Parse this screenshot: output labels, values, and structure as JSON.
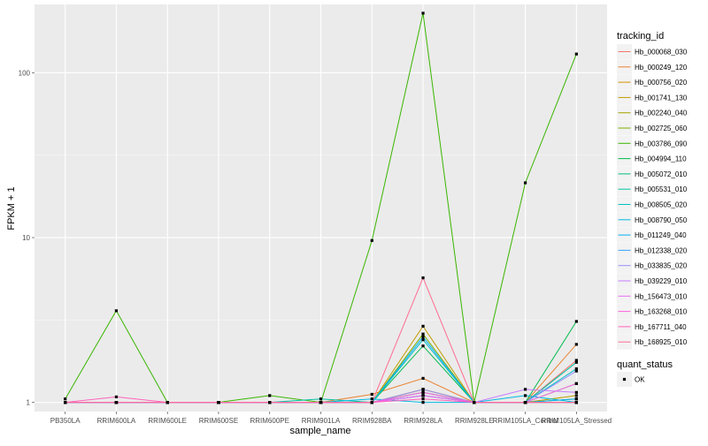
{
  "chart_data": {
    "type": "line",
    "xlabel": "sample_name",
    "ylabel": "FPKM + 1",
    "y_scale": "log10",
    "ylim": [
      0.88,
      260
    ],
    "y_ticks": [
      1,
      10,
      100
    ],
    "y_tick_labels": [
      "1",
      "10",
      "100"
    ],
    "grid": true,
    "legend_placement": "right",
    "categories": [
      "PB350LA",
      "RRIM600LA",
      "RRIM600LE",
      "RRIM600SE",
      "RRIM600PE",
      "RRIM901LA",
      "RRIM928BA",
      "RRIM928LA",
      "RRIM928LE",
      "RRIM105LA_Control",
      "RRIM105LA_Stressed"
    ],
    "legend_colour_title": "tracking_id",
    "legend_shape_title": "quant_status",
    "shape_entries": [
      "OK"
    ],
    "series": [
      {
        "name": "Hb_000068_030",
        "color": "#F8766D",
        "values": [
          1.0,
          1.0,
          1.0,
          1.0,
          1.0,
          1.0,
          1.0,
          1.15,
          1.0,
          1.0,
          1.8
        ]
      },
      {
        "name": "Hb_000249_120",
        "color": "#EA8331",
        "values": [
          1.0,
          1.0,
          1.0,
          1.0,
          1.0,
          1.0,
          1.12,
          1.4,
          1.0,
          1.0,
          2.25
        ]
      },
      {
        "name": "Hb_000756_020",
        "color": "#D89000",
        "values": [
          1.0,
          1.0,
          1.0,
          1.0,
          1.0,
          1.0,
          1.0,
          1.2,
          1.0,
          1.0,
          1.3
        ]
      },
      {
        "name": "Hb_001741_130",
        "color": "#C09B00",
        "values": [
          1.0,
          1.0,
          1.0,
          1.0,
          1.0,
          1.0,
          1.0,
          2.9,
          1.0,
          1.0,
          1.1
        ]
      },
      {
        "name": "Hb_002240_040",
        "color": "#A3A500",
        "values": [
          1.0,
          1.0,
          1.0,
          1.0,
          1.0,
          1.0,
          1.0,
          1.2,
          1.0,
          1.0,
          1.0
        ]
      },
      {
        "name": "Hb_002725_060",
        "color": "#7CAE00",
        "values": [
          1.0,
          1.0,
          1.0,
          1.0,
          1.0,
          1.0,
          1.0,
          2.6,
          1.0,
          1.0,
          1.05
        ]
      },
      {
        "name": "Hb_003786_090",
        "color": "#39B600",
        "values": [
          1.05,
          3.6,
          1.0,
          1.0,
          1.1,
          1.0,
          9.6,
          230.0,
          1.0,
          21.5,
          130.0
        ]
      },
      {
        "name": "Hb_004994_110",
        "color": "#00BB4E",
        "values": [
          1.0,
          1.0,
          1.0,
          1.0,
          1.0,
          1.0,
          1.0,
          2.2,
          1.0,
          1.0,
          3.1
        ]
      },
      {
        "name": "Hb_005072_010",
        "color": "#00BF7D",
        "values": [
          1.0,
          1.0,
          1.0,
          1.0,
          1.0,
          1.0,
          1.0,
          1.1,
          1.0,
          1.0,
          1.0
        ]
      },
      {
        "name": "Hb_005531_010",
        "color": "#00C1A3",
        "values": [
          1.0,
          1.0,
          1.0,
          1.0,
          1.0,
          1.05,
          1.0,
          1.15,
          1.0,
          1.0,
          1.75
        ]
      },
      {
        "name": "Hb_008505_020",
        "color": "#00BFC4",
        "values": [
          1.0,
          1.0,
          1.0,
          1.0,
          1.0,
          1.0,
          1.0,
          2.4,
          1.0,
          1.0,
          1.6
        ]
      },
      {
        "name": "Hb_008790_050",
        "color": "#00BAE0",
        "values": [
          1.0,
          1.0,
          1.0,
          1.0,
          1.0,
          1.0,
          1.05,
          1.0,
          1.0,
          1.1,
          1.0
        ]
      },
      {
        "name": "Hb_011249_040",
        "color": "#00B0F6",
        "values": [
          1.0,
          1.0,
          1.0,
          1.0,
          1.0,
          1.0,
          1.0,
          2.5,
          1.0,
          1.0,
          1.05
        ]
      },
      {
        "name": "Hb_012338_020",
        "color": "#35A2FF",
        "values": [
          1.0,
          1.0,
          1.0,
          1.0,
          1.0,
          1.0,
          1.0,
          1.1,
          1.0,
          1.0,
          1.0
        ]
      },
      {
        "name": "Hb_033835_020",
        "color": "#9590FF",
        "values": [
          1.0,
          1.0,
          1.0,
          1.0,
          1.0,
          1.0,
          1.0,
          1.2,
          1.0,
          1.0,
          1.55
        ]
      },
      {
        "name": "Hb_039229_010",
        "color": "#C77CFF",
        "values": [
          1.0,
          1.0,
          1.0,
          1.0,
          1.0,
          1.0,
          1.0,
          1.1,
          1.0,
          1.2,
          1.15
        ]
      },
      {
        "name": "Hb_156473_010",
        "color": "#E76BF3",
        "values": [
          1.0,
          1.0,
          1.0,
          1.0,
          1.0,
          1.0,
          1.0,
          1.1,
          1.0,
          1.0,
          1.3
        ]
      },
      {
        "name": "Hb_163268_010",
        "color": "#FA62DB",
        "values": [
          1.0,
          1.0,
          1.0,
          1.0,
          1.0,
          1.0,
          1.0,
          1.15,
          1.0,
          1.0,
          1.0
        ]
      },
      {
        "name": "Hb_167711_040",
        "color": "#FF62BC",
        "values": [
          1.0,
          1.08,
          1.0,
          1.0,
          1.0,
          1.0,
          1.0,
          1.05,
          1.0,
          1.0,
          1.0
        ]
      },
      {
        "name": "Hb_168925_010",
        "color": "#FF6C91",
        "values": [
          1.0,
          1.0,
          1.0,
          1.0,
          1.0,
          1.0,
          1.0,
          5.7,
          1.0,
          1.0,
          1.0
        ]
      }
    ]
  }
}
